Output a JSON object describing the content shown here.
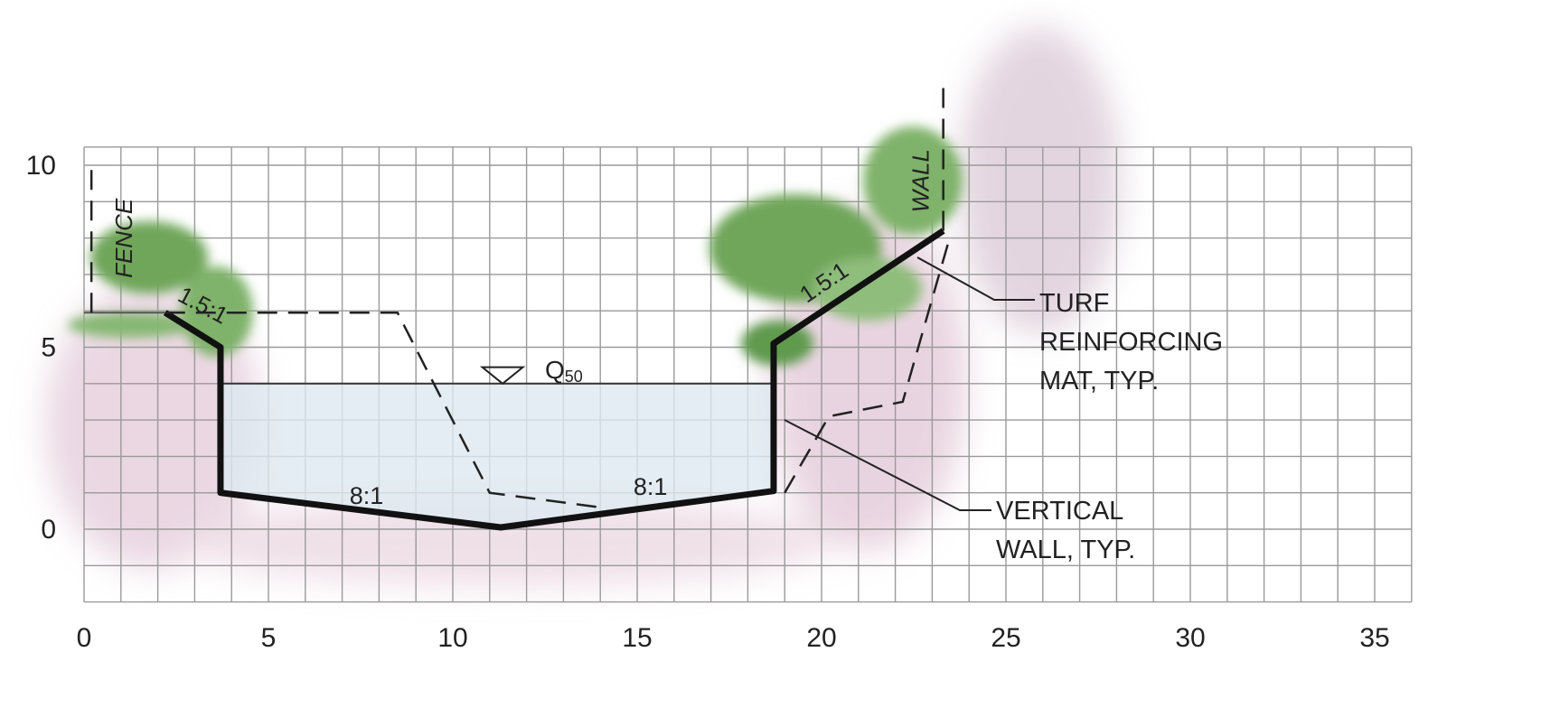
{
  "diagram": {
    "xticks": [
      0,
      5,
      10,
      15,
      20,
      25,
      30,
      35
    ],
    "yticks": [
      0,
      5,
      10
    ],
    "labels": {
      "fence": "FENCE",
      "wall": "WALL",
      "left_slope": "1.5:1",
      "right_slope": "1.5:1",
      "flow": "Q",
      "flow_sub": "50",
      "left_bottom": "8:1",
      "right_bottom": "8:1",
      "turf": [
        "TURF",
        "REINFORCING",
        "MAT, TYP."
      ],
      "vertical": [
        "VERTICAL",
        "WALL, TYP."
      ]
    }
  }
}
